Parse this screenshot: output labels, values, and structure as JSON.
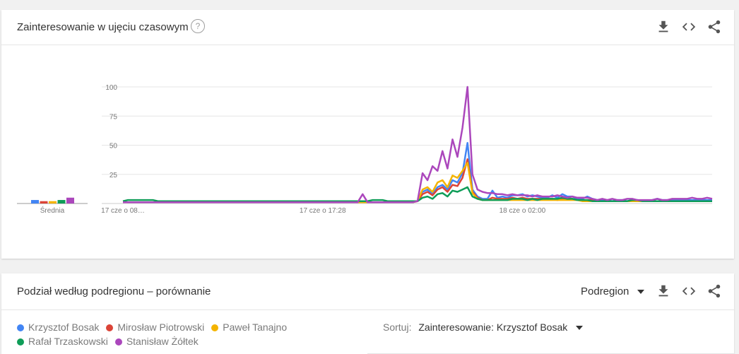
{
  "card1": {
    "title": "Zainteresowanie w ujęciu czasowym",
    "help_icon": "help-circle-icon",
    "icons": [
      "download-icon",
      "embed-code-icon",
      "share-icon"
    ]
  },
  "chart_data": {
    "type": "line",
    "ylim": [
      0,
      100
    ],
    "yticks": [
      "25",
      "50",
      "75",
      "100"
    ],
    "xtick_labels": [
      "17 cze o 08…",
      "17 cze o 17:28",
      "18 cze o 02:00"
    ],
    "xtick_index": [
      0,
      40,
      80
    ],
    "average_label": "Średnia",
    "series": [
      {
        "name": "Krzysztof Bosak",
        "color": "#4285f4",
        "average": 3,
        "values": [
          1,
          1,
          1,
          1,
          1,
          1,
          1,
          1,
          1,
          1,
          1,
          1,
          1,
          1,
          1,
          1,
          1,
          1,
          1,
          1,
          1,
          1,
          1,
          1,
          1,
          1,
          1,
          1,
          1,
          1,
          1,
          1,
          1,
          1,
          1,
          1,
          1,
          1,
          1,
          1,
          1,
          1,
          1,
          1,
          1,
          1,
          1,
          1,
          1,
          1,
          1,
          1,
          1,
          1,
          1,
          1,
          1,
          1,
          1,
          2,
          10,
          12,
          8,
          14,
          16,
          12,
          20,
          18,
          26,
          52,
          12,
          6,
          4,
          4,
          11,
          5,
          6,
          5,
          7,
          7,
          8,
          6,
          7,
          6,
          5,
          5,
          7,
          5,
          8,
          6,
          6,
          4,
          4,
          6,
          4,
          3,
          3,
          3,
          2,
          3,
          3,
          2,
          3,
          3,
          2,
          2,
          3,
          4,
          3,
          3,
          3,
          3,
          3,
          3,
          3,
          3,
          3,
          3,
          3
        ]
      },
      {
        "name": "Mirosław Piotrowski",
        "color": "#db4437",
        "average": 2,
        "values": [
          1,
          1,
          1,
          1,
          1,
          1,
          1,
          1,
          1,
          1,
          1,
          1,
          1,
          1,
          1,
          1,
          1,
          1,
          1,
          1,
          1,
          1,
          1,
          1,
          1,
          1,
          1,
          1,
          1,
          1,
          1,
          1,
          1,
          1,
          1,
          1,
          1,
          1,
          1,
          1,
          1,
          1,
          1,
          1,
          1,
          1,
          1,
          1,
          1,
          1,
          1,
          1,
          1,
          1,
          1,
          1,
          1,
          1,
          1,
          2,
          8,
          10,
          7,
          12,
          14,
          10,
          16,
          15,
          22,
          38,
          10,
          5,
          3,
          3,
          5,
          4,
          4,
          4,
          5,
          4,
          5,
          4,
          4,
          4,
          4,
          4,
          4,
          3,
          4,
          4,
          4,
          3,
          3,
          3,
          3,
          2,
          2,
          2,
          2,
          2,
          2,
          2,
          2,
          2,
          2,
          2,
          2,
          2,
          2,
          2,
          2,
          2,
          2,
          2,
          2,
          2,
          2,
          2,
          2
        ]
      },
      {
        "name": "Paweł Tanajno",
        "color": "#f4b400",
        "average": 2,
        "values": [
          1,
          1,
          1,
          1,
          1,
          1,
          1,
          1,
          1,
          1,
          1,
          1,
          1,
          1,
          1,
          1,
          1,
          1,
          1,
          1,
          1,
          1,
          1,
          1,
          1,
          1,
          1,
          1,
          1,
          1,
          1,
          1,
          1,
          1,
          1,
          1,
          1,
          1,
          1,
          1,
          1,
          1,
          1,
          1,
          1,
          1,
          1,
          1,
          1,
          1,
          1,
          1,
          1,
          1,
          1,
          1,
          1,
          1,
          1,
          2,
          12,
          14,
          10,
          18,
          20,
          14,
          24,
          22,
          28,
          35,
          9,
          4,
          3,
          3,
          3,
          3,
          3,
          3,
          3,
          3,
          3,
          3,
          3,
          3,
          3,
          3,
          3,
          3,
          3,
          3,
          3,
          3,
          2,
          2,
          2,
          2,
          2,
          2,
          2,
          2,
          2,
          2,
          2,
          2,
          2,
          2,
          2,
          2,
          2,
          2,
          2,
          2,
          2,
          2,
          2,
          2,
          2,
          2,
          2
        ]
      },
      {
        "name": "Rafał Trzaskowski",
        "color": "#0f9d58",
        "average": 3,
        "values": [
          2,
          3,
          3,
          3,
          3,
          3,
          3,
          2,
          2,
          2,
          2,
          2,
          2,
          2,
          2,
          2,
          2,
          2,
          2,
          2,
          2,
          2,
          2,
          2,
          2,
          2,
          2,
          2,
          2,
          2,
          2,
          2,
          2,
          2,
          2,
          2,
          2,
          2,
          2,
          2,
          2,
          2,
          2,
          2,
          2,
          2,
          2,
          2,
          2,
          2,
          3,
          3,
          3,
          2,
          2,
          2,
          2,
          2,
          2,
          2,
          5,
          6,
          4,
          8,
          9,
          6,
          11,
          10,
          12,
          14,
          6,
          4,
          3,
          3,
          3,
          3,
          3,
          3,
          4,
          4,
          4,
          3,
          4,
          3,
          4,
          4,
          4,
          4,
          5,
          4,
          4,
          3,
          3,
          3,
          2,
          2,
          2,
          2,
          2,
          2,
          2,
          2,
          3,
          3,
          2,
          2,
          2,
          2,
          2,
          2,
          2,
          2,
          2,
          2,
          2,
          2,
          2,
          2,
          2
        ]
      },
      {
        "name": "Stanisław Żółtek",
        "color": "#ab47bc",
        "average": 5,
        "values": [
          1,
          1,
          1,
          1,
          1,
          1,
          1,
          1,
          1,
          1,
          1,
          1,
          1,
          1,
          1,
          1,
          1,
          1,
          1,
          1,
          1,
          1,
          1,
          1,
          1,
          1,
          1,
          1,
          1,
          1,
          1,
          1,
          1,
          1,
          1,
          1,
          1,
          1,
          1,
          1,
          1,
          1,
          1,
          1,
          1,
          1,
          1,
          1,
          8,
          1,
          1,
          1,
          1,
          1,
          1,
          1,
          1,
          1,
          1,
          2,
          26,
          20,
          32,
          28,
          45,
          30,
          55,
          40,
          65,
          100,
          25,
          12,
          10,
          9,
          9,
          8,
          8,
          7,
          8,
          7,
          7,
          7,
          6,
          7,
          6,
          6,
          6,
          7,
          6,
          5,
          6,
          5,
          5,
          5,
          4,
          3,
          4,
          3,
          4,
          3,
          3,
          4,
          4,
          3,
          3,
          3,
          3,
          4,
          3,
          3,
          4,
          4,
          4,
          4,
          5,
          4,
          4,
          5,
          4
        ]
      }
    ]
  },
  "card2": {
    "title": "Podział według podregionu – porównanie",
    "region_select": "Podregion",
    "icons": [
      "download-icon",
      "embed-code-icon",
      "share-icon"
    ],
    "sort_label": "Sortuj:",
    "sort_value": "Zainteresowanie: Krzysztof Bosak"
  }
}
